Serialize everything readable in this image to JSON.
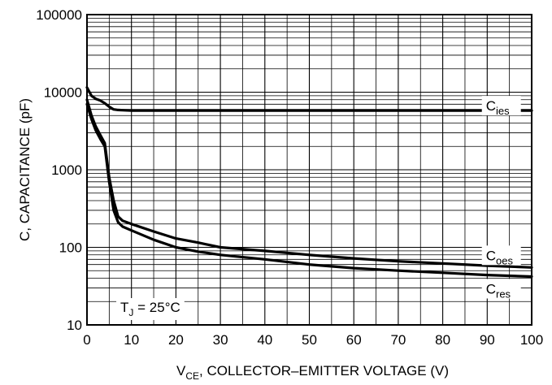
{
  "chart_data": {
    "type": "line",
    "xlabel": {
      "main": "V",
      "sub": "CE",
      "rest": ", COLLECTOR–EMITTER VOLTAGE (V)"
    },
    "ylabel": "C, CAPACITANCE (pF)",
    "xlim": [
      0,
      100
    ],
    "ylim": [
      10,
      100000
    ],
    "yscale": "log",
    "x_ticks": [
      0,
      10,
      20,
      30,
      40,
      50,
      60,
      70,
      80,
      90,
      100
    ],
    "y_ticks": [
      10,
      100,
      1000,
      10000,
      100000
    ],
    "y_tick_labels": [
      "10",
      "100",
      "1000",
      "10000",
      "100000"
    ],
    "grid": true,
    "annotation": {
      "main": "T",
      "sub": "J",
      "rest": " = 25°C"
    },
    "series": [
      {
        "name": "Cies",
        "label_main": "C",
        "label_sub": "ies",
        "x": [
          0,
          1,
          2,
          3,
          4,
          5,
          6,
          7,
          8,
          10,
          20,
          30,
          40,
          50,
          60,
          70,
          80,
          90,
          100
        ],
        "y": [
          11500,
          9000,
          8200,
          7800,
          7200,
          6500,
          6000,
          5900,
          5850,
          5800,
          5800,
          5800,
          5800,
          5800,
          5800,
          5800,
          5800,
          5800,
          5800
        ]
      },
      {
        "name": "Coes",
        "label_main": "C",
        "label_sub": "oes",
        "x": [
          0,
          1,
          2,
          3,
          4,
          5,
          6,
          7,
          8,
          10,
          15,
          20,
          25,
          30,
          40,
          50,
          60,
          70,
          80,
          90,
          100
        ],
        "y": [
          8000,
          5000,
          3600,
          2800,
          2200,
          800,
          400,
          250,
          220,
          200,
          160,
          130,
          115,
          100,
          90,
          80,
          72,
          66,
          62,
          58,
          55
        ]
      },
      {
        "name": "Cres",
        "label_main": "C",
        "label_sub": "res",
        "x": [
          0,
          1,
          2,
          3,
          4,
          5,
          6,
          7,
          8,
          10,
          15,
          20,
          25,
          30,
          40,
          50,
          60,
          70,
          80,
          90,
          100
        ],
        "y": [
          7000,
          4500,
          3200,
          2500,
          2000,
          700,
          300,
          210,
          185,
          165,
          125,
          100,
          88,
          80,
          70,
          60,
          54,
          50,
          47,
          44,
          42
        ]
      }
    ]
  }
}
